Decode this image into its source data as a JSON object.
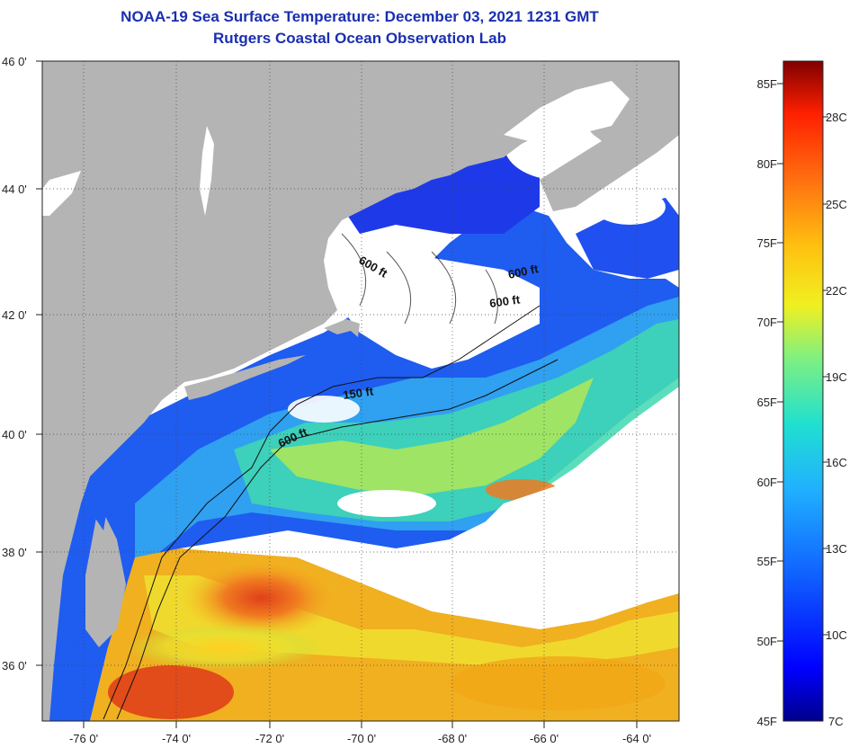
{
  "title": {
    "line1": "NOAA-19 Sea Surface Temperature:  December 03, 2021 1231 GMT",
    "line2": "Rutgers Coastal Ocean Observation Lab"
  },
  "axes": {
    "lat_labels": [
      "46 0'",
      "44 0'",
      "42 0'",
      "40 0'",
      "38 0'",
      "36 0'"
    ],
    "lon_labels": [
      "-76 0'",
      "-74 0'",
      "-72 0'",
      "-70 0'",
      "-68 0'",
      "-66 0'",
      "-64 0'"
    ]
  },
  "contour_labels": [
    "600 ft",
    "600 ft",
    "600 ft",
    "150 ft",
    "600 ft"
  ],
  "colorbar": {
    "f_labels": [
      "85F",
      "80F",
      "75F",
      "70F",
      "65F",
      "60F",
      "55F",
      "50F",
      "45F"
    ],
    "c_labels": [
      "28C",
      "25C",
      "22C",
      "19C",
      "16C",
      "13C",
      "10C",
      "7C"
    ]
  },
  "colors": {
    "land": "#b4b4b4",
    "cloud": "#ffffff",
    "title": "#1a2fb0"
  }
}
